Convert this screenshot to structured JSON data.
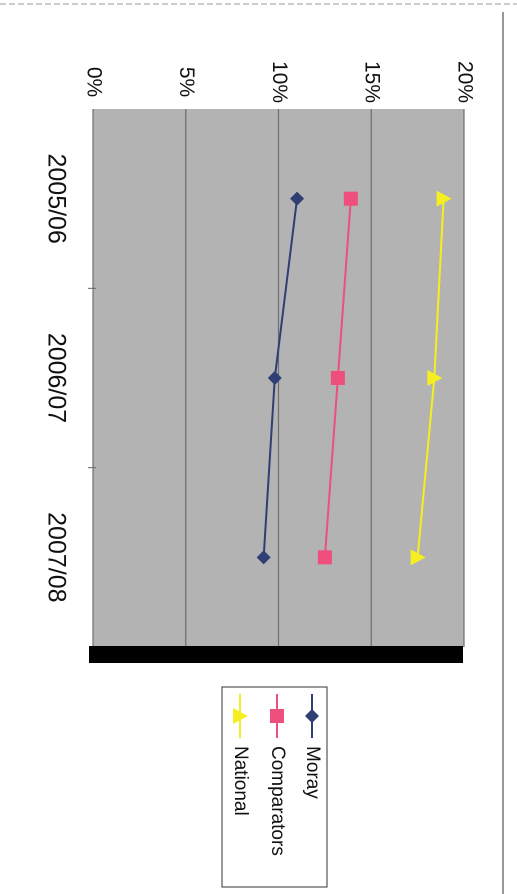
{
  "chart_data": {
    "type": "line",
    "title": "",
    "xlabel": "",
    "ylabel": "",
    "categories": [
      "2005/06",
      "2006/07",
      "2007/08"
    ],
    "ylim": [
      0,
      20
    ],
    "yticks": [
      "0%",
      "5%",
      "10%",
      "15%",
      "20%"
    ],
    "grid": true,
    "legend": "right",
    "series": [
      {
        "name": "Moray",
        "values": [
          11.0,
          9.8,
          9.2
        ],
        "color": "#2f3e74",
        "marker": "diamond"
      },
      {
        "name": "Comparators",
        "values": [
          13.9,
          13.2,
          12.5
        ],
        "color": "#ee4f7d",
        "marker": "square"
      },
      {
        "name": "National",
        "values": [
          18.9,
          18.4,
          17.5
        ],
        "color": "#f5ee20",
        "marker": "triangle"
      }
    ],
    "colors": {
      "plot_background": "#b3b3b3",
      "gridline": "#6e6e6e",
      "base_bar": "#000000"
    }
  }
}
